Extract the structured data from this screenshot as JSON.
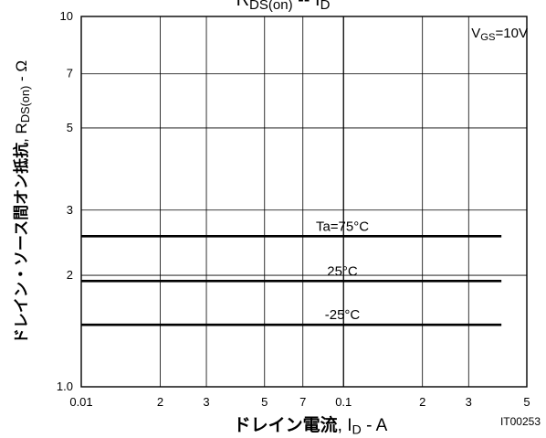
{
  "chart_data": {
    "type": "line",
    "title": {
      "main": "R",
      "sub": "DS(on)",
      "sep": " -- I",
      "sub2": "D"
    },
    "condition": {
      "main": "V",
      "sub": "GS",
      "tail": "=10V"
    },
    "xlabel": {
      "jp": "ドレイン電流",
      "comma": ", I",
      "sub": "D",
      "tail": " - A"
    },
    "ylabel": {
      "jp": "ドレイン・ソース間オン抵抗",
      "comma": ", R",
      "sub": "DS(on)",
      "tail": " - Ω"
    },
    "x_scale": "log",
    "y_scale": "log",
    "xlim": [
      0.01,
      0.5
    ],
    "ylim": [
      1.0,
      10
    ],
    "x_ticks": [
      {
        "value": 0.01,
        "label": "0.01"
      },
      {
        "value": 0.02,
        "label": "2"
      },
      {
        "value": 0.03,
        "label": "3"
      },
      {
        "value": 0.05,
        "label": "5"
      },
      {
        "value": 0.07,
        "label": "7"
      },
      {
        "value": 0.1,
        "label": "0.1"
      },
      {
        "value": 0.2,
        "label": "2"
      },
      {
        "value": 0.3,
        "label": "3"
      },
      {
        "value": 0.5,
        "label": "5"
      }
    ],
    "y_ticks": [
      {
        "value": 1.0,
        "label": "1.0"
      },
      {
        "value": 2,
        "label": "2"
      },
      {
        "value": 3,
        "label": "3"
      },
      {
        "value": 5,
        "label": "5"
      },
      {
        "value": 7,
        "label": "7"
      },
      {
        "value": 10,
        "label": "10"
      }
    ],
    "grid": true,
    "series": [
      {
        "name": "Ta=75°C",
        "x": [
          0.01,
          0.4
        ],
        "values": [
          2.55,
          2.55
        ]
      },
      {
        "name": "25°C",
        "x": [
          0.01,
          0.4
        ],
        "values": [
          1.93,
          1.93
        ]
      },
      {
        "name": "-25°C",
        "x": [
          0.01,
          0.4
        ],
        "values": [
          1.47,
          1.47
        ]
      }
    ],
    "figure_id": "IT00253"
  }
}
